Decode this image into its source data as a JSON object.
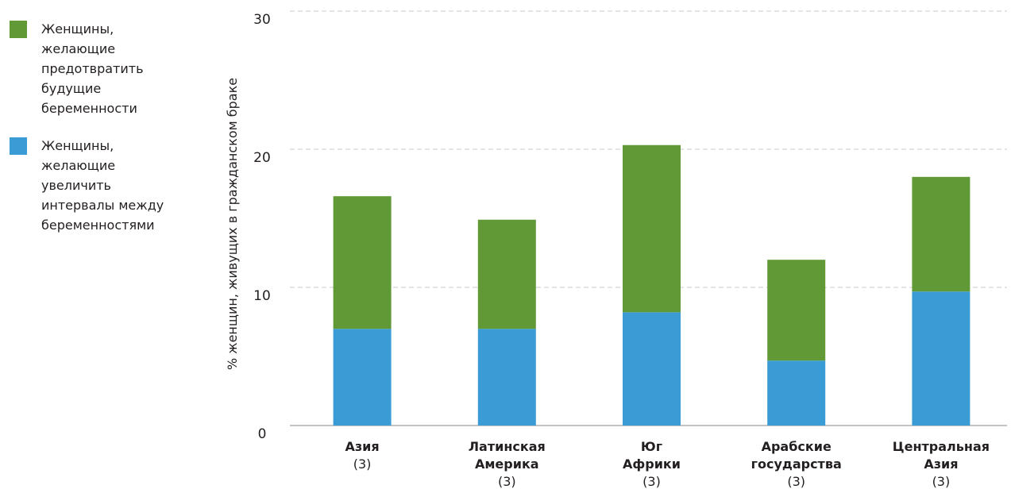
{
  "colors": {
    "green": "#619936",
    "blue": "#3a9bd5",
    "grid": "#c8c8c8",
    "axis": "#8a8a8a",
    "text": "#231f20"
  },
  "legend": [
    {
      "label": "Женщины, желающие предотвратить будущие беременности",
      "color": "#619936"
    },
    {
      "label": "Женщины, желающие увеличить интервалы между беременностями",
      "color": "#3a9bd5"
    }
  ],
  "chart_data": {
    "type": "bar",
    "stacked": true,
    "ylabel": "% женщин, живущих в гражданском браке",
    "ylim": [
      0,
      30
    ],
    "yticks": [
      0,
      10,
      20,
      30
    ],
    "grid": true,
    "legend_position": "left",
    "categories": [
      {
        "name": "Азия",
        "note": "(3)"
      },
      {
        "name": "Латинская Америка",
        "note": "(3)"
      },
      {
        "name": "Юг Африки",
        "note": "(3)"
      },
      {
        "name": "Арабские государства",
        "note": "(3)"
      },
      {
        "name": "Центральная Азия",
        "note": "(3)"
      }
    ],
    "series": [
      {
        "name": "Женщины, желающие увеличить интервалы между беременностями",
        "color": "#3a9bd5",
        "values": [
          7.0,
          7.0,
          8.2,
          4.7,
          9.7
        ]
      },
      {
        "name": "Женщины, желающие предотвратить будущие беременности",
        "color": "#619936",
        "values": [
          9.6,
          7.9,
          12.1,
          7.3,
          8.3
        ]
      }
    ]
  }
}
